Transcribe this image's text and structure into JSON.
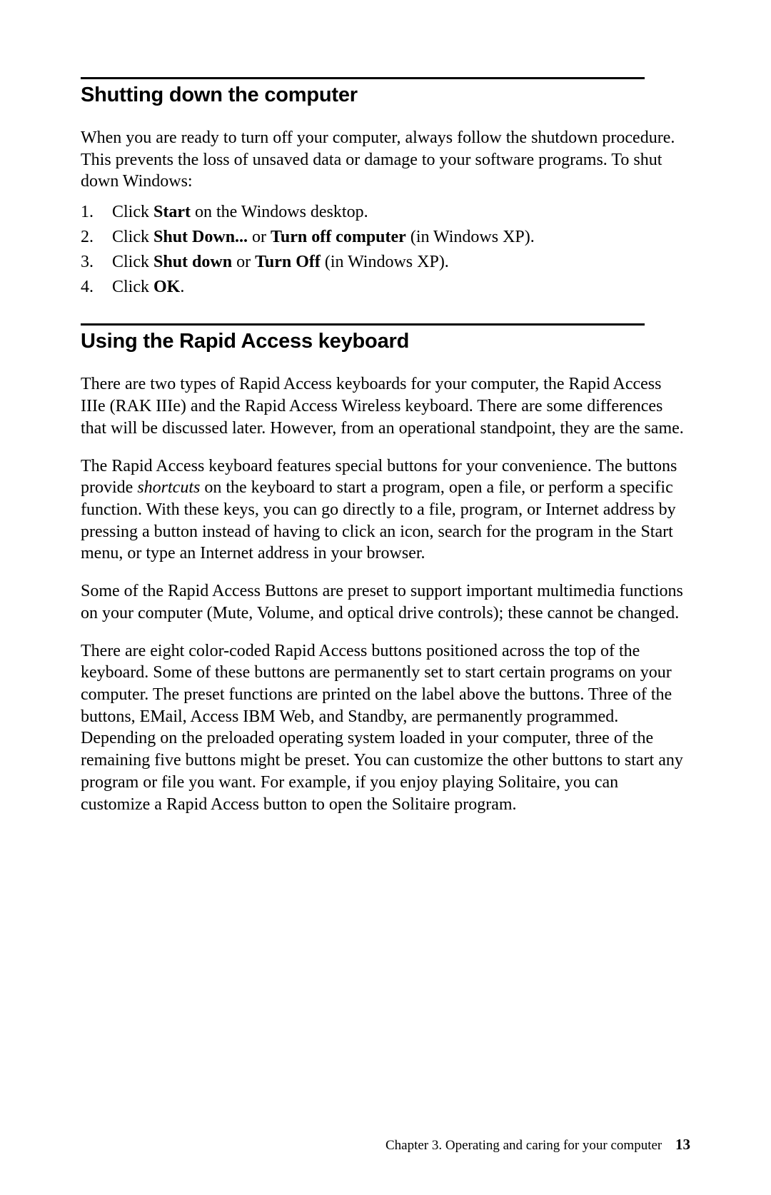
{
  "section1": {
    "heading": "Shutting down the computer",
    "intro_pre": " When you are ready to turn off your computer, always follow the shutdown procedure. This prevents the loss of unsaved data or damage to your software programs. To shut down Windows:",
    "steps": [
      {
        "num": "1.",
        "pre": "Click ",
        "b1": "Start",
        "post": " on the Windows desktop."
      },
      {
        "num": "2.",
        "pre": "Click ",
        "b1": "Shut Down...",
        "mid": " or ",
        "b2": "Turn off computer",
        "post": " (in Windows XP)."
      },
      {
        "num": "3.",
        "pre": "Click ",
        "b1": "Shut down",
        "mid": " or ",
        "b2": "Turn Off",
        "post": " (in Windows XP)."
      },
      {
        "num": "4.",
        "pre": "Click ",
        "b1": "OK",
        "post": "."
      }
    ]
  },
  "section2": {
    "heading": "Using the Rapid Access keyboard",
    "para1": "There are two types of Rapid Access keyboards for your computer, the Rapid Access IIIe (RAK IIIe) and the Rapid Access Wireless keyboard. There are some differences that will be discussed later. However, from an operational standpoint, they are the same.",
    "para2_pre": "The Rapid Access keyboard features special buttons for your convenience. The buttons provide ",
    "para2_em": "shortcuts",
    "para2_post": " on the keyboard to start a program, open a file, or perform a specific function. With these keys, you can go directly to a file, program, or Internet address by pressing a button instead of having to click an icon, search for the program in the Start menu, or type an Internet address in your browser.",
    "para3": "Some of the Rapid Access Buttons are preset to support important multimedia functions on your computer (Mute, Volume, and optical drive controls); these cannot be changed.",
    "para4": "There are eight color-coded Rapid Access buttons positioned across the top of the keyboard. Some of these buttons are permanently set to start certain programs on your computer. The preset functions are printed on the label above the buttons. Three of the buttons, EMail, Access IBM Web, and Standby, are permanently programmed. Depending on the preloaded operating system loaded in your computer, three of the remaining five buttons might be preset. You can customize the other buttons to start any program or file you want. For example, if you enjoy playing Solitaire, you can customize a Rapid Access button to open the Solitaire program."
  },
  "footer": {
    "chapter": "Chapter 3.  Operating and caring for your computer",
    "page": "13"
  }
}
